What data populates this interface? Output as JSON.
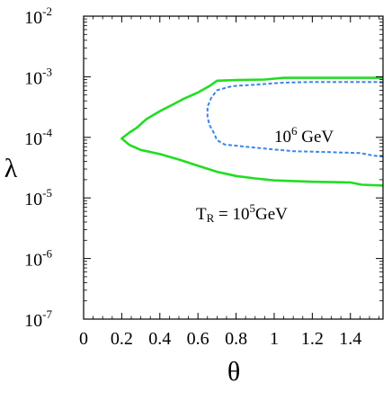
{
  "chart_data": {
    "type": "line",
    "xlabel": "θ",
    "ylabel": "λ",
    "xlim": [
      0,
      1.571
    ],
    "ylim": [
      1e-07,
      0.01
    ],
    "yscale": "log",
    "grid": false,
    "x_ticks": [
      "0",
      "0.2",
      "0.4",
      "0.6",
      "0.8",
      "1",
      "1.2",
      "1.4"
    ],
    "x_tick_values": [
      0,
      0.2,
      0.4,
      0.6,
      0.8,
      1.0,
      1.2,
      1.4
    ],
    "y_ticks": [
      {
        "base": "10",
        "exp": "-7"
      },
      {
        "base": "10",
        "exp": "-6"
      },
      {
        "base": "10",
        "exp": "-5"
      },
      {
        "base": "10",
        "exp": "-4"
      },
      {
        "base": "10",
        "exp": "-3"
      },
      {
        "base": "10",
        "exp": "-2"
      }
    ],
    "y_tick_values": [
      1e-07,
      1e-06,
      1e-05,
      0.0001,
      0.001,
      0.01
    ],
    "series": [
      {
        "color": "#22dd22",
        "style": "solid",
        "points": [
          [
            1.571,
            0.00096
          ],
          [
            1.3,
            0.00096
          ],
          [
            1.05,
            0.00096
          ],
          [
            0.95,
            0.0009
          ],
          [
            0.8,
            0.00088
          ],
          [
            0.7,
            0.00086
          ],
          [
            0.66,
            0.0007
          ],
          [
            0.6,
            0.00055
          ],
          [
            0.53,
            0.00044
          ],
          [
            0.47,
            0.00035
          ],
          [
            0.4,
            0.00027
          ],
          [
            0.33,
            0.0002
          ],
          [
            0.28,
            0.000145
          ],
          [
            0.24,
            0.00012
          ],
          [
            0.2,
            9.6e-05
          ],
          [
            0.24,
            7.5e-05
          ],
          [
            0.3,
            6.2e-05
          ],
          [
            0.4,
            5.3e-05
          ],
          [
            0.5,
            4.3e-05
          ],
          [
            0.6,
            3.4e-05
          ],
          [
            0.7,
            2.7e-05
          ],
          [
            0.8,
            2.3e-05
          ],
          [
            0.9,
            2.1e-05
          ],
          [
            1.0,
            1.95e-05
          ],
          [
            1.2,
            1.85e-05
          ],
          [
            1.4,
            1.8e-05
          ],
          [
            1.46,
            1.65e-05
          ],
          [
            1.571,
            1.6e-05
          ]
        ]
      },
      {
        "color": "#3a86e6",
        "style": "dashed",
        "points": [
          [
            1.571,
            0.00082
          ],
          [
            1.2,
            0.00082
          ],
          [
            1.05,
            0.0008
          ],
          [
            0.9,
            0.00074
          ],
          [
            0.78,
            0.0007
          ],
          [
            0.7,
            0.0006
          ],
          [
            0.67,
            0.00045
          ],
          [
            0.65,
            0.00032
          ],
          [
            0.65,
            0.00022
          ],
          [
            0.66,
            0.00016
          ],
          [
            0.68,
            0.000125
          ],
          [
            0.7,
            9e-05
          ],
          [
            0.74,
            7.6e-05
          ],
          [
            0.85,
            7e-05
          ],
          [
            1.0,
            6.3e-05
          ],
          [
            1.1,
            5.9e-05
          ],
          [
            1.3,
            5.7e-05
          ],
          [
            1.45,
            5.5e-05
          ],
          [
            1.52,
            5e-05
          ],
          [
            1.571,
            4.8e-05
          ]
        ]
      }
    ],
    "annotations": [
      {
        "text_base": "10",
        "text_sup": "6",
        "text_tail": " GeV",
        "x": 1.02,
        "y": 0.00013
      },
      {
        "text_pre": "T",
        "text_sub": "R",
        "text_mid": " = 10",
        "text_sup": "5",
        "text_tail": "GeV",
        "x": 0.6,
        "y": 5e-06
      }
    ]
  }
}
